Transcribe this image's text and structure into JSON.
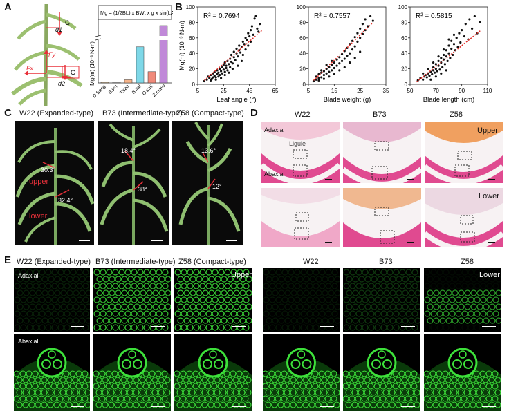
{
  "panels": {
    "A": "A",
    "B": "B",
    "C": "C",
    "D": "D",
    "E": "E"
  },
  "panelA": {
    "formula": "Mg = (1/2BL) x BWt x g x sin(LA)",
    "ylabel": "Mg(m) (10⁻³ N·m)",
    "species": [
      "D.Sang.",
      "S.viri.",
      "T.sati.",
      "S.ital.",
      "O.sati.",
      "Z.mays"
    ],
    "values": [
      0.05,
      0.05,
      0.25,
      2.9,
      0.9,
      22
    ],
    "colors": [
      "#f2d4a8",
      "#cccccc",
      "#f6b48a",
      "#7ed8e8",
      "#f08a7a",
      "#c089d8"
    ],
    "diagram": {
      "g1": "G",
      "g2": "G",
      "d1": "d1",
      "d2": "d2",
      "fy": "Fy",
      "fx": "Fx"
    }
  },
  "chart_data": [
    {
      "type": "scatter",
      "title": "",
      "xlabel": "Leaf angle (°)",
      "ylabel": "Mg(m) (10⁻³ N·m)",
      "xlim": [
        5,
        65
      ],
      "ylim": [
        0,
        100
      ],
      "xticks": [
        5,
        25,
        45,
        65
      ],
      "yticks": [
        0,
        20,
        40,
        60,
        80,
        100
      ],
      "annotation": "R² = 0.7694",
      "trend": [
        [
          10,
          5
        ],
        [
          55,
          70
        ]
      ],
      "points": [
        [
          10,
          4
        ],
        [
          12,
          6
        ],
        [
          13,
          10
        ],
        [
          14,
          8
        ],
        [
          15,
          12
        ],
        [
          16,
          7
        ],
        [
          17,
          14
        ],
        [
          18,
          11
        ],
        [
          18,
          16
        ],
        [
          19,
          9
        ],
        [
          20,
          13
        ],
        [
          20,
          18
        ],
        [
          21,
          15
        ],
        [
          22,
          20
        ],
        [
          22,
          12
        ],
        [
          23,
          17
        ],
        [
          24,
          22
        ],
        [
          24,
          14
        ],
        [
          25,
          19
        ],
        [
          25,
          25
        ],
        [
          26,
          16
        ],
        [
          26,
          28
        ],
        [
          27,
          21
        ],
        [
          27,
          24
        ],
        [
          28,
          30
        ],
        [
          28,
          18
        ],
        [
          29,
          26
        ],
        [
          30,
          33
        ],
        [
          30,
          22
        ],
        [
          31,
          29
        ],
        [
          31,
          38
        ],
        [
          32,
          27
        ],
        [
          33,
          35
        ],
        [
          33,
          42
        ],
        [
          34,
          31
        ],
        [
          35,
          40
        ],
        [
          35,
          46
        ],
        [
          36,
          36
        ],
        [
          37,
          44
        ],
        [
          37,
          50
        ],
        [
          38,
          41
        ],
        [
          39,
          48
        ],
        [
          40,
          55
        ],
        [
          40,
          38
        ],
        [
          41,
          52
        ],
        [
          42,
          45
        ],
        [
          42,
          60
        ],
        [
          43,
          57
        ],
        [
          44,
          50
        ],
        [
          44,
          66
        ],
        [
          45,
          62
        ],
        [
          46,
          70
        ],
        [
          46,
          55
        ],
        [
          47,
          75
        ],
        [
          48,
          64
        ],
        [
          49,
          85
        ],
        [
          50,
          88
        ],
        [
          51,
          72
        ],
        [
          52,
          68
        ],
        [
          53,
          78
        ],
        [
          15,
          5
        ],
        [
          17,
          9
        ],
        [
          19,
          6
        ],
        [
          21,
          10
        ],
        [
          23,
          8
        ],
        [
          26,
          12
        ],
        [
          29,
          15
        ],
        [
          32,
          20
        ],
        [
          36,
          24
        ],
        [
          39,
          30
        ]
      ]
    },
    {
      "type": "scatter",
      "title": "",
      "xlabel": "Blade weight (g)",
      "ylabel": "",
      "xlim": [
        5,
        35
      ],
      "ylim": [
        0,
        100
      ],
      "xticks": [
        5,
        15,
        25,
        35
      ],
      "yticks": [
        0,
        20,
        40,
        60,
        80,
        100
      ],
      "annotation": "R² = 0.7557",
      "trend": [
        [
          7,
          5
        ],
        [
          30,
          80
        ]
      ],
      "points": [
        [
          7,
          4
        ],
        [
          8,
          6
        ],
        [
          8,
          10
        ],
        [
          9,
          8
        ],
        [
          9,
          13
        ],
        [
          10,
          9
        ],
        [
          10,
          15
        ],
        [
          11,
          12
        ],
        [
          11,
          17
        ],
        [
          12,
          14
        ],
        [
          12,
          20
        ],
        [
          13,
          16
        ],
        [
          13,
          22
        ],
        [
          14,
          18
        ],
        [
          14,
          25
        ],
        [
          15,
          21
        ],
        [
          15,
          28
        ],
        [
          16,
          24
        ],
        [
          16,
          32
        ],
        [
          17,
          27
        ],
        [
          17,
          35
        ],
        [
          18,
          30
        ],
        [
          18,
          39
        ],
        [
          19,
          33
        ],
        [
          19,
          43
        ],
        [
          20,
          37
        ],
        [
          20,
          47
        ],
        [
          21,
          40
        ],
        [
          21,
          52
        ],
        [
          22,
          45
        ],
        [
          22,
          56
        ],
        [
          23,
          49
        ],
        [
          23,
          61
        ],
        [
          24,
          55
        ],
        [
          24,
          66
        ],
        [
          25,
          60
        ],
        [
          25,
          72
        ],
        [
          26,
          65
        ],
        [
          26,
          78
        ],
        [
          27,
          70
        ],
        [
          27,
          84
        ],
        [
          28,
          75
        ],
        [
          29,
          88
        ],
        [
          30,
          82
        ],
        [
          9,
          5
        ],
        [
          11,
          7
        ],
        [
          13,
          10
        ],
        [
          15,
          13
        ],
        [
          17,
          18
        ],
        [
          19,
          22
        ],
        [
          21,
          28
        ],
        [
          23,
          34
        ],
        [
          25,
          42
        ],
        [
          10,
          18
        ],
        [
          12,
          25
        ],
        [
          14,
          30
        ]
      ]
    },
    {
      "type": "scatter",
      "title": "",
      "xlabel": "Blade length (cm)",
      "ylabel": "",
      "xlim": [
        50,
        110
      ],
      "ylim": [
        0,
        100
      ],
      "xticks": [
        50,
        70,
        90,
        110
      ],
      "yticks": [
        0,
        20,
        40,
        60,
        80,
        100
      ],
      "annotation": "R² = 0.5815",
      "trend": [
        [
          55,
          3
        ],
        [
          105,
          70
        ]
      ],
      "points": [
        [
          56,
          5
        ],
        [
          58,
          8
        ],
        [
          60,
          6
        ],
        [
          61,
          10
        ],
        [
          62,
          12
        ],
        [
          63,
          9
        ],
        [
          64,
          14
        ],
        [
          65,
          11
        ],
        [
          66,
          16
        ],
        [
          67,
          13
        ],
        [
          68,
          18
        ],
        [
          68,
          22
        ],
        [
          69,
          15
        ],
        [
          70,
          20
        ],
        [
          70,
          26
        ],
        [
          71,
          17
        ],
        [
          72,
          24
        ],
        [
          72,
          30
        ],
        [
          73,
          19
        ],
        [
          74,
          28
        ],
        [
          74,
          34
        ],
        [
          75,
          22
        ],
        [
          76,
          32
        ],
        [
          76,
          38
        ],
        [
          77,
          26
        ],
        [
          78,
          36
        ],
        [
          78,
          44
        ],
        [
          79,
          30
        ],
        [
          80,
          40
        ],
        [
          80,
          50
        ],
        [
          81,
          34
        ],
        [
          82,
          46
        ],
        [
          82,
          56
        ],
        [
          83,
          38
        ],
        [
          84,
          52
        ],
        [
          85,
          44
        ],
        [
          86,
          60
        ],
        [
          87,
          48
        ],
        [
          88,
          66
        ],
        [
          89,
          54
        ],
        [
          90,
          70
        ],
        [
          92,
          62
        ],
        [
          93,
          78
        ],
        [
          95,
          58
        ],
        [
          96,
          84
        ],
        [
          98,
          72
        ],
        [
          100,
          88
        ],
        [
          102,
          66
        ],
        [
          104,
          80
        ],
        [
          60,
          14
        ],
        [
          64,
          20
        ],
        [
          68,
          28
        ],
        [
          72,
          36
        ],
        [
          76,
          45
        ],
        [
          80,
          58
        ],
        [
          84,
          64
        ],
        [
          66,
          6
        ],
        [
          70,
          10
        ],
        [
          74,
          14
        ],
        [
          78,
          18
        ]
      ]
    }
  ],
  "panelC": [
    {
      "title": "W22 (Expanded-type)",
      "angle1": "30.3°",
      "angle2": "32.4°",
      "upper": "upper",
      "lower": "lower"
    },
    {
      "title": "B73 (Intermediate-type)",
      "angle1": "18.4°",
      "angle2": "38°"
    },
    {
      "title": "Z58 (Compact-type)",
      "angle1": "13.6°",
      "angle2": "12°"
    }
  ],
  "panelD": {
    "cols": [
      "W22",
      "B73",
      "Z58"
    ],
    "adaxial": "Adaxial",
    "abaxial": "Abaxial",
    "ligule": "Ligule",
    "upper": "Upper",
    "lower": "Lower"
  },
  "panelE": {
    "left": [
      "W22 (Expanded-type)",
      "B73 (Intermediate-type)",
      "Z58 (Compact-type)"
    ],
    "right": [
      "W22",
      "B73",
      "Z58"
    ],
    "adaxial": "Adaxial",
    "abaxial": "Abaxial",
    "upper": "Upper",
    "lower": "Lower"
  },
  "colors": {
    "green": "#3de03a",
    "red": "#e8303a",
    "magenta": "#d8307a",
    "trend": "#e0302a"
  }
}
